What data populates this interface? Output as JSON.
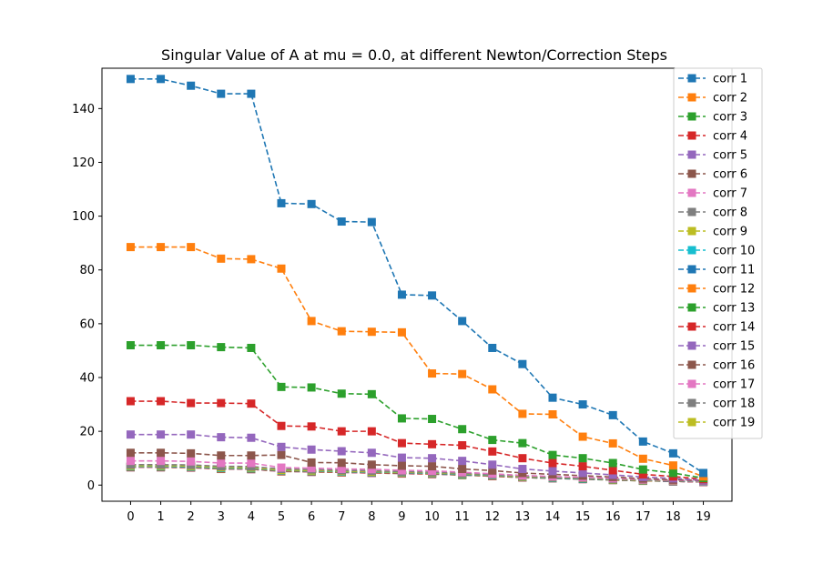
{
  "chart_data": {
    "type": "line",
    "title": "Singular Value of A at mu = 0.0, at different Newton/Correction Steps",
    "xlabel": "",
    "ylabel": "",
    "x": [
      0,
      1,
      2,
      3,
      4,
      5,
      6,
      7,
      8,
      9,
      10,
      11,
      12,
      13,
      14,
      15,
      16,
      17,
      18,
      19
    ],
    "xlim": [
      -0.95,
      19.95
    ],
    "ylim": [
      -6,
      155
    ],
    "yticks": [
      0,
      20,
      40,
      60,
      80,
      100,
      120,
      140
    ],
    "grid": false,
    "legend_position": "right",
    "line_style": "dashed",
    "marker": "square",
    "colors": [
      "#1f77b4",
      "#ff7f0e",
      "#2ca02c",
      "#d62728",
      "#9467bd",
      "#8c564b",
      "#e377c2",
      "#7f7f7f",
      "#bcbd22",
      "#17becf"
    ],
    "series": [
      {
        "name": "corr 1",
        "values": [
          151.0,
          151.0,
          148.5,
          145.5,
          145.5,
          104.8,
          104.5,
          98.0,
          97.8,
          70.8,
          70.5,
          61.0,
          51.0,
          45.0,
          32.5,
          30.0,
          26.0,
          16.2,
          11.8,
          4.5
        ]
      },
      {
        "name": "corr 2",
        "values": [
          88.5,
          88.5,
          88.5,
          84.2,
          84.0,
          80.5,
          61.0,
          57.2,
          57.0,
          56.8,
          41.5,
          41.3,
          35.6,
          26.5,
          26.3,
          18.0,
          15.5,
          9.8,
          7.3,
          3.2
        ]
      },
      {
        "name": "corr 3",
        "values": [
          52.0,
          52.0,
          52.0,
          51.3,
          51.0,
          36.5,
          36.3,
          34.0,
          33.8,
          24.8,
          24.6,
          20.8,
          16.8,
          15.6,
          11.2,
          10.0,
          8.2,
          5.8,
          4.5,
          2.6
        ]
      },
      {
        "name": "corr 4",
        "values": [
          31.2,
          31.2,
          30.5,
          30.5,
          30.3,
          22.0,
          21.8,
          20.0,
          20.0,
          15.6,
          15.2,
          14.8,
          12.5,
          10.0,
          8.2,
          7.0,
          5.5,
          4.0,
          3.2,
          2.2
        ]
      },
      {
        "name": "corr 5",
        "values": [
          18.8,
          18.8,
          18.8,
          17.8,
          17.6,
          14.2,
          13.2,
          12.6,
          12.0,
          10.2,
          10.0,
          9.0,
          7.6,
          6.0,
          5.2,
          4.5,
          3.8,
          3.0,
          2.5,
          1.8
        ]
      },
      {
        "name": "corr 6",
        "values": [
          12.0,
          12.0,
          11.8,
          11.0,
          11.0,
          11.2,
          8.4,
          8.3,
          7.6,
          7.2,
          7.0,
          6.0,
          5.4,
          4.5,
          4.0,
          3.5,
          3.0,
          2.4,
          2.0,
          1.7
        ]
      },
      {
        "name": "corr 7",
        "values": [
          9.0,
          9.0,
          8.8,
          8.2,
          8.2,
          6.5,
          6.3,
          6.0,
          5.9,
          5.5,
          5.3,
          4.8,
          4.2,
          3.6,
          3.2,
          2.9,
          2.5,
          2.1,
          1.8,
          1.5
        ]
      },
      {
        "name": "corr 8",
        "values": [
          7.6,
          7.6,
          7.5,
          7.0,
          6.9,
          6.0,
          5.8,
          5.5,
          5.3,
          5.0,
          4.8,
          4.4,
          3.9,
          3.4,
          3.0,
          2.7,
          2.3,
          2.0,
          1.7,
          1.4
        ]
      },
      {
        "name": "corr 9",
        "values": [
          7.2,
          7.2,
          7.1,
          6.6,
          6.5,
          5.6,
          5.4,
          5.2,
          5.0,
          4.8,
          4.6,
          4.2,
          3.8,
          3.2,
          2.9,
          2.6,
          2.2,
          1.9,
          1.6,
          1.4
        ]
      },
      {
        "name": "corr 10",
        "values": [
          7.0,
          7.0,
          6.9,
          6.4,
          6.3,
          5.5,
          5.3,
          5.0,
          4.9,
          4.7,
          4.5,
          4.1,
          3.7,
          3.1,
          2.8,
          2.5,
          2.1,
          1.8,
          1.6,
          1.3
        ]
      },
      {
        "name": "corr 11",
        "values": [
          6.9,
          6.9,
          6.8,
          6.3,
          6.2,
          5.4,
          5.2,
          5.0,
          4.8,
          4.6,
          4.4,
          4.0,
          3.6,
          3.1,
          2.7,
          2.4,
          2.1,
          1.8,
          1.5,
          1.3
        ]
      },
      {
        "name": "corr 12",
        "values": [
          6.8,
          6.8,
          6.7,
          6.2,
          6.1,
          5.3,
          5.1,
          4.9,
          4.7,
          4.5,
          4.3,
          4.0,
          3.5,
          3.0,
          2.7,
          2.4,
          2.0,
          1.7,
          1.5,
          1.3
        ]
      },
      {
        "name": "corr 13",
        "values": [
          6.8,
          6.8,
          6.7,
          6.2,
          6.1,
          5.3,
          5.1,
          4.9,
          4.7,
          4.5,
          4.3,
          3.9,
          3.5,
          3.0,
          2.6,
          2.3,
          2.0,
          1.7,
          1.5,
          1.3
        ]
      },
      {
        "name": "corr 14",
        "values": [
          6.7,
          6.7,
          6.6,
          6.1,
          6.0,
          5.2,
          5.0,
          4.8,
          4.6,
          4.4,
          4.2,
          3.9,
          3.4,
          2.9,
          2.6,
          2.3,
          2.0,
          1.7,
          1.4,
          1.2
        ]
      },
      {
        "name": "corr 15",
        "values": [
          6.7,
          6.7,
          6.6,
          6.1,
          6.0,
          5.2,
          5.0,
          4.8,
          4.6,
          4.4,
          4.2,
          3.8,
          3.4,
          2.9,
          2.6,
          2.3,
          2.0,
          1.7,
          1.4,
          1.2
        ]
      },
      {
        "name": "corr 16",
        "values": [
          6.7,
          6.7,
          6.6,
          6.0,
          6.0,
          5.2,
          5.0,
          4.8,
          4.6,
          4.4,
          4.2,
          3.8,
          3.4,
          2.9,
          2.6,
          2.3,
          1.9,
          1.6,
          1.4,
          1.2
        ]
      },
      {
        "name": "corr 17",
        "values": [
          6.6,
          6.6,
          6.5,
          6.0,
          5.9,
          5.1,
          4.9,
          4.7,
          4.5,
          4.3,
          4.1,
          3.8,
          3.3,
          2.9,
          2.5,
          2.2,
          1.9,
          1.6,
          1.4,
          1.2
        ]
      },
      {
        "name": "corr 18",
        "values": [
          6.6,
          6.6,
          6.5,
          6.0,
          5.9,
          5.1,
          4.9,
          4.7,
          4.5,
          4.3,
          4.1,
          3.8,
          3.3,
          2.8,
          2.5,
          2.2,
          1.9,
          1.6,
          1.4,
          1.2
        ]
      },
      {
        "name": "corr 19",
        "values": [
          6.6,
          6.6,
          6.5,
          6.0,
          5.9,
          5.1,
          4.9,
          4.7,
          4.5,
          4.3,
          4.1,
          3.7,
          3.3,
          2.8,
          2.5,
          2.2,
          1.9,
          1.6,
          1.4,
          1.2
        ]
      }
    ]
  }
}
